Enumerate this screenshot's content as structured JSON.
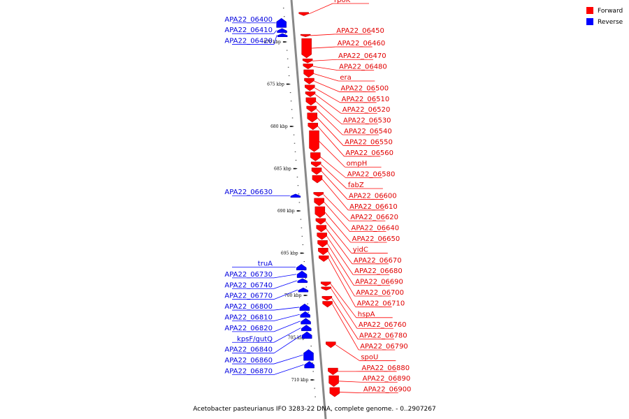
{
  "caption": "Acetobacter pasteurianus IFO 3283-22 DNA, complete genome. - 0..2907267",
  "colors": {
    "forward": "#ff0000",
    "reverse": "#0000ff",
    "forward_text": "#e00000",
    "reverse_text": "#0000dd",
    "backbone": "#888888"
  },
  "legend": [
    {
      "label": "Forward",
      "strand": "forward"
    },
    {
      "label": "Reverse",
      "strand": "reverse"
    }
  ],
  "position_axis": {
    "unit": "kbp",
    "start_kbp": 666,
    "end_kbp": 712,
    "labeled_ticks": [
      670,
      675,
      680,
      685,
      690,
      695,
      700,
      705,
      710
    ]
  },
  "forward_genes": [
    {
      "name": "rpoK",
      "start_kbp": 666.5,
      "end_kbp": 666.9
    },
    {
      "name": "APA22_06450",
      "start_kbp": 669.1,
      "end_kbp": 669.4
    },
    {
      "name": "APA22_06460",
      "start_kbp": 669.6,
      "end_kbp": 671.9
    },
    {
      "name": "APA22_06470",
      "start_kbp": 672.0,
      "end_kbp": 672.5
    },
    {
      "name": "APA22_06480",
      "start_kbp": 672.6,
      "end_kbp": 673.2
    },
    {
      "name": "era",
      "start_kbp": 673.3,
      "end_kbp": 674.2
    },
    {
      "name": "APA22_06500",
      "start_kbp": 674.3,
      "end_kbp": 675.0
    },
    {
      "name": "APA22_06510",
      "start_kbp": 675.1,
      "end_kbp": 675.8
    },
    {
      "name": "APA22_06520",
      "start_kbp": 675.9,
      "end_kbp": 676.5
    },
    {
      "name": "APA22_06530",
      "start_kbp": 676.6,
      "end_kbp": 677.5
    },
    {
      "name": "APA22_06540",
      "start_kbp": 677.6,
      "end_kbp": 678.3
    },
    {
      "name": "APA22_06550",
      "start_kbp": 678.4,
      "end_kbp": 679.5
    },
    {
      "name": "APA22_06560",
      "start_kbp": 679.6,
      "end_kbp": 680.4
    },
    {
      "name": "ompH",
      "start_kbp": 680.5,
      "end_kbp": 683.0
    },
    {
      "name": "APA22_06580",
      "start_kbp": 683.1,
      "end_kbp": 684.1
    },
    {
      "name": "fabZ",
      "start_kbp": 684.2,
      "end_kbp": 684.8
    },
    {
      "name": "APA22_06600",
      "start_kbp": 684.9,
      "end_kbp": 685.7
    },
    {
      "name": "APA22_06610",
      "start_kbp": 685.8,
      "end_kbp": 686.7
    },
    {
      "name": "APA22_06620",
      "start_kbp": 687.8,
      "end_kbp": 688.3
    },
    {
      "name": "APA22_06640",
      "start_kbp": 688.5,
      "end_kbp": 689.4
    },
    {
      "name": "APA22_06650",
      "start_kbp": 689.5,
      "end_kbp": 690.8
    },
    {
      "name": "yidC",
      "start_kbp": 690.9,
      "end_kbp": 691.6
    },
    {
      "name": "APA22_06670",
      "start_kbp": 691.7,
      "end_kbp": 692.5
    },
    {
      "name": "APA22_06680",
      "start_kbp": 692.6,
      "end_kbp": 693.4
    },
    {
      "name": "APA22_06690",
      "start_kbp": 693.5,
      "end_kbp": 694.3
    },
    {
      "name": "APA22_06700",
      "start_kbp": 694.4,
      "end_kbp": 695.2
    },
    {
      "name": "APA22_06710",
      "start_kbp": 695.3,
      "end_kbp": 696.0
    },
    {
      "name": "hspA",
      "start_kbp": 698.4,
      "end_kbp": 698.9
    },
    {
      "name": "APA22_06760",
      "start_kbp": 699.0,
      "end_kbp": 699.4
    },
    {
      "name": "APA22_06780",
      "start_kbp": 700.1,
      "end_kbp": 700.6
    },
    {
      "name": "APA22_06790",
      "start_kbp": 700.7,
      "end_kbp": 701.4
    },
    {
      "name": "spoU",
      "start_kbp": 705.5,
      "end_kbp": 706.2
    },
    {
      "name": "APA22_06880",
      "start_kbp": 708.6,
      "end_kbp": 709.4
    },
    {
      "name": "APA22_06890",
      "start_kbp": 709.5,
      "end_kbp": 710.8
    },
    {
      "name": "APA22_06900",
      "start_kbp": 710.9,
      "end_kbp": 712.0
    }
  ],
  "reverse_genes": [
    {
      "name": "APA22_06400",
      "start_kbp": 667.2,
      "end_kbp": 668.3
    },
    {
      "name": "APA22_06410",
      "start_kbp": 668.4,
      "end_kbp": 668.9
    },
    {
      "name": "APA22_06420",
      "start_kbp": 669.0,
      "end_kbp": 669.4
    },
    {
      "name": "APA22_06630",
      "start_kbp": 688.0,
      "end_kbp": 688.4
    },
    {
      "name": "truA",
      "start_kbp": 696.3,
      "end_kbp": 697.0
    },
    {
      "name": "APA22_06730",
      "start_kbp": 697.1,
      "end_kbp": 697.9
    },
    {
      "name": "APA22_06740",
      "start_kbp": 698.0,
      "end_kbp": 698.5
    },
    {
      "name": "APA22_06770",
      "start_kbp": 699.1,
      "end_kbp": 699.6
    },
    {
      "name": "APA22_06800",
      "start_kbp": 701.0,
      "end_kbp": 701.8
    },
    {
      "name": "APA22_06810",
      "start_kbp": 701.9,
      "end_kbp": 702.6
    },
    {
      "name": "APA22_06820",
      "start_kbp": 702.7,
      "end_kbp": 703.4
    },
    {
      "name": "kpsF/gutQ",
      "start_kbp": 703.5,
      "end_kbp": 704.2
    },
    {
      "name": "APA22_06840",
      "start_kbp": 704.3,
      "end_kbp": 705.1
    },
    {
      "name": "APA22_06860",
      "start_kbp": 706.4,
      "end_kbp": 707.7
    },
    {
      "name": "APA22_06870",
      "start_kbp": 707.8,
      "end_kbp": 708.6
    }
  ]
}
